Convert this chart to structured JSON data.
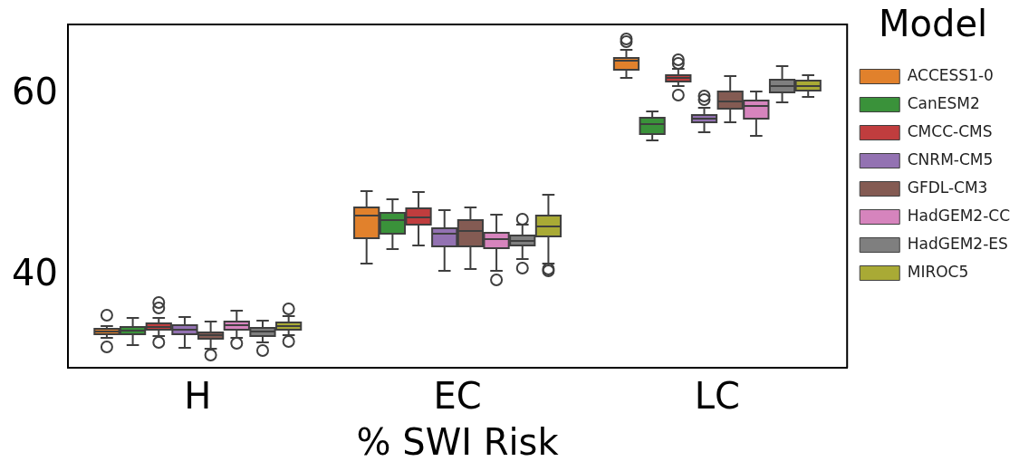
{
  "chart_data": {
    "type": "box",
    "xlabel": "% SWI Risk",
    "legend_title": "Model",
    "legend": "right",
    "categories": [
      "H",
      "EC",
      "LC"
    ],
    "ylim": [
      29.9,
      67.8
    ],
    "yticks": [
      40,
      60
    ],
    "series": [
      {
        "name": "ACCESS1-0",
        "color": "#e1812c",
        "boxes": [
          {
            "low": 33.2,
            "q1": 33.6,
            "median": 33.9,
            "q3": 34.2,
            "high": 34.5,
            "outliers": [
              35.7,
              32.2
            ]
          },
          {
            "low": 41.4,
            "q1": 44.2,
            "median": 46.7,
            "q3": 47.6,
            "high": 49.4
          },
          {
            "low": 61.9,
            "q1": 62.8,
            "median": 63.8,
            "q3": 64.1,
            "high": 65.0,
            "outliers": [
              66.2,
              65.9
            ]
          }
        ]
      },
      {
        "name": "CanESM2",
        "color": "#3a923a",
        "boxes": [
          {
            "low": 32.4,
            "q1": 33.6,
            "median": 34.0,
            "q3": 34.4,
            "high": 35.4
          },
          {
            "low": 43.0,
            "q1": 44.7,
            "median": 46.2,
            "q3": 47.0,
            "high": 48.5
          },
          {
            "low": 55.0,
            "q1": 55.7,
            "median": 56.8,
            "q3": 57.5,
            "high": 58.2
          }
        ]
      },
      {
        "name": "CMCC-CMS",
        "color": "#c03d3e",
        "boxes": [
          {
            "low": 33.4,
            "q1": 34.1,
            "median": 34.4,
            "q3": 34.8,
            "high": 35.4,
            "outliers": [
              37.1,
              36.5,
              32.7
            ]
          },
          {
            "low": 43.4,
            "q1": 45.7,
            "median": 46.5,
            "q3": 47.5,
            "high": 49.3
          },
          {
            "low": 61.0,
            "q1": 61.5,
            "median": 61.9,
            "q3": 62.2,
            "high": 62.9,
            "outliers": [
              63.9,
              63.5,
              60.0
            ]
          }
        ]
      },
      {
        "name": "CNRM-CM5",
        "color": "#9372b2",
        "boxes": [
          {
            "low": 32.1,
            "q1": 33.6,
            "median": 34.1,
            "q3": 34.6,
            "high": 35.5
          },
          {
            "low": 40.6,
            "q1": 43.3,
            "median": 44.7,
            "q3": 45.3,
            "high": 47.3
          },
          {
            "low": 55.9,
            "q1": 57.0,
            "median": 57.4,
            "q3": 57.8,
            "high": 58.6,
            "outliers": [
              59.9,
              59.5
            ]
          }
        ]
      },
      {
        "name": "GFDL-CM3",
        "color": "#845b53",
        "boxes": [
          {
            "low": 32.0,
            "q1": 33.1,
            "median": 33.5,
            "q3": 33.8,
            "high": 35.0,
            "outliers": [
              31.3
            ]
          },
          {
            "low": 40.8,
            "q1": 43.3,
            "median": 45.0,
            "q3": 46.2,
            "high": 47.6
          },
          {
            "low": 57.0,
            "q1": 58.5,
            "median": 59.3,
            "q3": 60.4,
            "high": 62.1
          }
        ]
      },
      {
        "name": "HadGEM2-CC",
        "color": "#d684bd",
        "boxes": [
          {
            "low": 33.2,
            "q1": 34.1,
            "median": 34.6,
            "q3": 35.0,
            "high": 36.2,
            "outliers": [
              32.6
            ]
          },
          {
            "low": 40.6,
            "q1": 43.1,
            "median": 44.1,
            "q3": 44.8,
            "high": 46.8,
            "outliers": [
              39.6
            ]
          },
          {
            "low": 55.5,
            "q1": 57.4,
            "median": 58.8,
            "q3": 59.4,
            "high": 60.4
          }
        ]
      },
      {
        "name": "HadGEM2-ES",
        "color": "#7f7f7f",
        "boxes": [
          {
            "low": 32.7,
            "q1": 33.4,
            "median": 33.9,
            "q3": 34.3,
            "high": 35.1,
            "outliers": [
              31.8
            ]
          },
          {
            "low": 41.9,
            "q1": 43.4,
            "median": 43.9,
            "q3": 44.5,
            "high": 45.7,
            "outliers": [
              46.3,
              40.9
            ]
          },
          {
            "low": 59.2,
            "q1": 60.3,
            "median": 61.0,
            "q3": 61.7,
            "high": 63.2
          }
        ]
      },
      {
        "name": "MIROC5",
        "color": "#a9aa35",
        "boxes": [
          {
            "low": 33.5,
            "q1": 34.1,
            "median": 34.5,
            "q3": 34.9,
            "high": 35.6,
            "outliers": [
              36.4,
              32.8
            ]
          },
          {
            "low": 41.4,
            "q1": 44.4,
            "median": 45.5,
            "q3": 46.7,
            "high": 49.0,
            "outliers": [
              40.8,
              40.6
            ]
          },
          {
            "low": 59.8,
            "q1": 60.5,
            "median": 61.0,
            "q3": 61.6,
            "high": 62.2
          }
        ]
      }
    ]
  }
}
